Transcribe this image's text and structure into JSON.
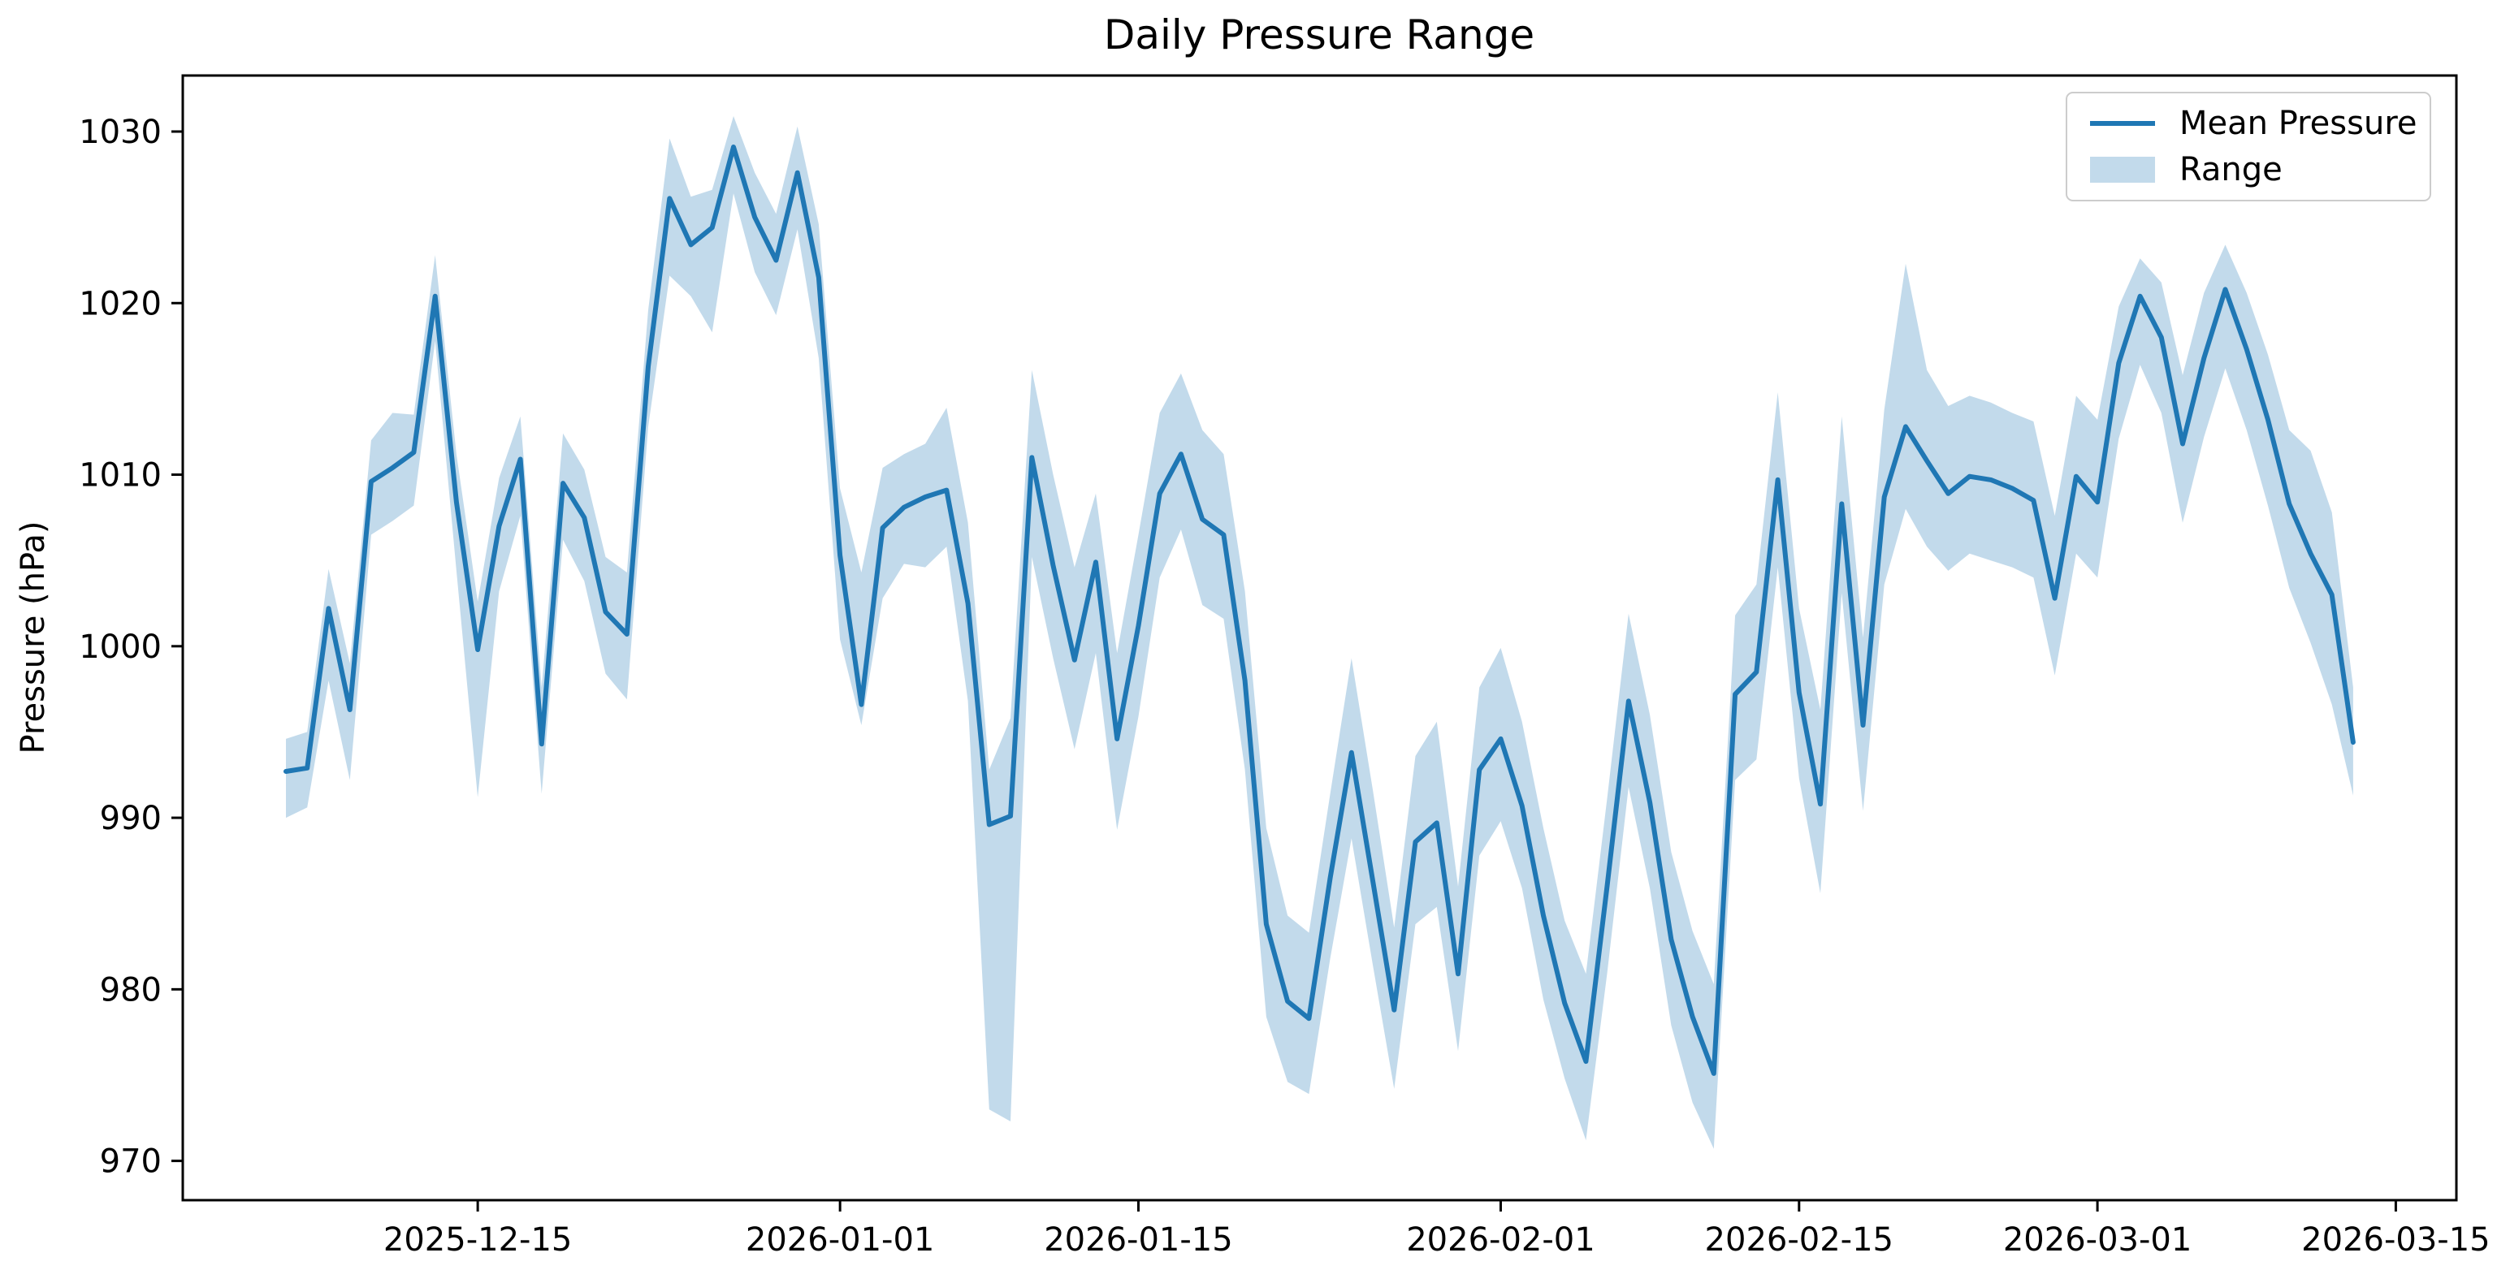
{
  "title": "Daily Pressure Range",
  "ylabel": "Pressure (hPa)",
  "legend": {
    "mean_label": "Mean Pressure",
    "range_label": "Range"
  },
  "colors": {
    "line": "#1f77b4",
    "band": "#1f77b4",
    "band_opacity": 0.27,
    "spine": "#000000",
    "background": "#ffffff",
    "legend_border": "#cccccc"
  },
  "chart_data": {
    "type": "line",
    "title": "Daily Pressure Range",
    "xlabel": "",
    "ylabel": "Pressure (hPa)",
    "grid": false,
    "legend_position": "upper right",
    "legend_entries": [
      "Mean Pressure",
      "Range"
    ],
    "ylim": [
      967.6,
      1033.3
    ],
    "yticks": [
      970,
      980,
      990,
      1000,
      1010,
      1020,
      1030
    ],
    "xticks": [
      "2025-12-15",
      "2026-01-01",
      "2026-01-15",
      "2026-02-01",
      "2026-02-15",
      "2026-03-01",
      "2026-03-15"
    ],
    "x_dates": [
      "2025-12-06",
      "2025-12-07",
      "2025-12-08",
      "2025-12-09",
      "2025-12-10",
      "2025-12-11",
      "2025-12-12",
      "2025-12-13",
      "2025-12-14",
      "2025-12-15",
      "2025-12-16",
      "2025-12-17",
      "2025-12-18",
      "2025-12-19",
      "2025-12-20",
      "2025-12-21",
      "2025-12-22",
      "2025-12-23",
      "2025-12-24",
      "2025-12-25",
      "2025-12-26",
      "2025-12-27",
      "2025-12-28",
      "2025-12-29",
      "2025-12-30",
      "2025-12-31",
      "2026-01-01",
      "2026-01-02",
      "2026-01-03",
      "2026-01-04",
      "2026-01-05",
      "2026-01-06",
      "2026-01-07",
      "2026-01-08",
      "2026-01-09",
      "2026-01-10",
      "2026-01-11",
      "2026-01-12",
      "2026-01-13",
      "2026-01-14",
      "2026-01-15",
      "2026-01-16",
      "2026-01-17",
      "2026-01-18",
      "2026-01-19",
      "2026-01-20",
      "2026-01-21",
      "2026-01-22",
      "2026-01-23",
      "2026-01-24",
      "2026-01-25",
      "2026-01-26",
      "2026-01-27",
      "2026-01-28",
      "2026-01-29",
      "2026-01-30",
      "2026-01-31",
      "2026-02-01",
      "2026-02-02",
      "2026-02-03",
      "2026-02-04",
      "2026-02-05",
      "2026-02-06",
      "2026-02-07",
      "2026-02-08",
      "2026-02-09",
      "2026-02-10",
      "2026-02-11",
      "2026-02-12",
      "2026-02-13",
      "2026-02-14",
      "2026-02-15",
      "2026-02-16",
      "2026-02-17",
      "2026-02-18",
      "2026-02-19",
      "2026-02-20",
      "2026-02-21",
      "2026-02-22",
      "2026-02-23",
      "2026-02-24",
      "2026-02-25",
      "2026-02-26",
      "2026-02-27",
      "2026-02-28",
      "2026-03-01",
      "2026-03-02",
      "2026-03-03",
      "2026-03-04",
      "2026-03-05",
      "2026-03-06",
      "2026-03-07",
      "2026-03-08",
      "2026-03-09",
      "2026-03-10",
      "2026-03-11",
      "2026-03-12",
      "2026-03-13"
    ],
    "series": [
      {
        "name": "Mean Pressure",
        "color": "#1f77b4",
        "values": [
          992.7,
          992.9,
          1002.2,
          996.3,
          1009.6,
          1010.4,
          1011.3,
          1020.4,
          1008.4,
          999.8,
          1007.0,
          1010.9,
          994.3,
          1009.5,
          1007.5,
          1002.0,
          1000.7,
          1016.3,
          1026.1,
          1023.4,
          1024.4,
          1029.1,
          1025.0,
          1022.5,
          1027.6,
          1021.5,
          1005.3,
          996.6,
          1006.9,
          1008.1,
          1008.7,
          1009.1,
          1002.5,
          989.6,
          990.1,
          1011.0,
          1004.7,
          999.2,
          1004.9,
          994.6,
          1001.2,
          1008.9,
          1011.2,
          1007.4,
          1006.5,
          998.0,
          983.8,
          979.3,
          978.3,
          986.5,
          993.8,
          986.3,
          978.8,
          988.6,
          989.7,
          980.9,
          992.8,
          994.6,
          990.7,
          984.3,
          979.2,
          975.8,
          986.1,
          996.8,
          990.9,
          982.9,
          978.4,
          975.1,
          997.2,
          998.5,
          1009.7,
          997.3,
          990.8,
          1008.3,
          995.4,
          1008.7,
          1012.8,
          1010.8,
          1008.9,
          1009.9,
          1009.7,
          1009.2,
          1008.5,
          1002.8,
          1009.9,
          1008.4,
          1016.5,
          1020.4,
          1018.0,
          1011.8,
          1016.8,
          1020.8,
          1017.3,
          1013.2,
          1008.3,
          1005.4,
          1003.0,
          994.4
        ]
      }
    ],
    "band": {
      "name": "Range",
      "color": "#1f77b4",
      "opacity": 0.27,
      "min": [
        990.0,
        990.6,
        998.0,
        992.2,
        1006.5,
        1007.3,
        1008.2,
        1017.8,
        1004.4,
        991.2,
        1003.2,
        1007.6,
        991.4,
        1006.2,
        1003.8,
        998.4,
        996.9,
        1012.8,
        1021.6,
        1020.4,
        1018.3,
        1026.4,
        1021.8,
        1019.3,
        1024.3,
        1016.8,
        1000.4,
        995.4,
        1002.8,
        1004.8,
        1004.6,
        1005.8,
        996.8,
        973.0,
        972.3,
        1005.2,
        999.3,
        994.0,
        999.6,
        989.3,
        995.9,
        1004.0,
        1006.8,
        1002.4,
        1001.6,
        992.8,
        978.4,
        974.6,
        973.9,
        981.8,
        988.8,
        981.4,
        974.2,
        983.8,
        984.8,
        976.4,
        987.8,
        989.8,
        985.9,
        979.4,
        974.8,
        971.2,
        981.0,
        991.8,
        985.9,
        977.9,
        973.4,
        970.7,
        992.2,
        993.4,
        1004.6,
        992.3,
        985.6,
        1003.1,
        990.4,
        1003.6,
        1008.0,
        1005.8,
        1004.4,
        1005.4,
        1005.0,
        1004.6,
        1004.0,
        998.3,
        1005.4,
        1004.0,
        1012.1,
        1016.4,
        1013.6,
        1007.2,
        1012.2,
        1016.2,
        1012.6,
        1008.2,
        1003.4,
        1000.2,
        996.6,
        991.3
      ],
      "max": [
        994.6,
        995.0,
        1004.5,
        999.0,
        1012.0,
        1013.6,
        1013.5,
        1022.8,
        1011.2,
        1002.6,
        1009.8,
        1013.4,
        997.6,
        1012.4,
        1010.3,
        1005.2,
        1004.3,
        1019.6,
        1029.6,
        1026.2,
        1026.6,
        1030.9,
        1027.6,
        1025.2,
        1030.3,
        1024.6,
        1009.2,
        1004.3,
        1010.4,
        1011.2,
        1011.8,
        1013.9,
        1007.2,
        992.8,
        995.8,
        1016.1,
        1010.0,
        1004.6,
        1008.9,
        999.6,
        1006.5,
        1013.6,
        1015.9,
        1012.6,
        1011.2,
        1003.2,
        989.4,
        984.3,
        983.3,
        991.4,
        999.3,
        991.6,
        983.6,
        993.6,
        995.6,
        986.0,
        997.6,
        999.9,
        995.6,
        989.4,
        984.0,
        980.9,
        991.2,
        1001.9,
        996.0,
        988.0,
        983.4,
        980.3,
        1001.8,
        1003.6,
        1014.8,
        1002.2,
        996.3,
        1013.4,
        1000.5,
        1013.8,
        1022.3,
        1016.1,
        1014.0,
        1014.6,
        1014.2,
        1013.6,
        1013.1,
        1007.6,
        1014.6,
        1013.2,
        1019.8,
        1022.6,
        1021.2,
        1015.8,
        1020.6,
        1023.4,
        1020.6,
        1017.0,
        1012.6,
        1011.4,
        1007.8,
        997.6
      ]
    }
  }
}
